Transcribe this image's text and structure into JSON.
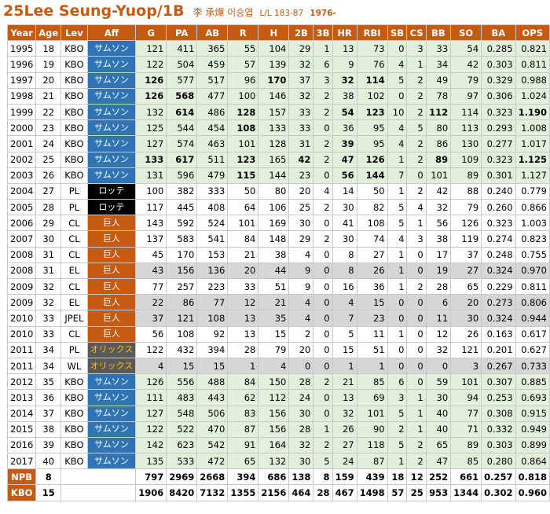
{
  "header": {
    "title": "25Lee Seung-Yuop/1B",
    "name_cjk": "李 承燁 이승엽",
    "bio": "L/L 183-87",
    "birth_year": "1976-"
  },
  "columns": [
    "Year",
    "Age",
    "Lev",
    "Aff",
    "G",
    "PA",
    "AB",
    "R",
    "H",
    "2B",
    "3B",
    "HR",
    "RBI",
    "SB",
    "CS",
    "BB",
    "SO",
    "BA",
    "OPS"
  ],
  "rows": [
    {
      "type": "kbo",
      "aff_style": "samsung",
      "cells": [
        "1995",
        "18",
        "KBO",
        "サムソン",
        "121",
        "411",
        "365",
        "55",
        "104",
        "29",
        "1",
        "13",
        "73",
        "0",
        "3",
        "33",
        "54",
        "0.285",
        "0.821"
      ],
      "bold": []
    },
    {
      "type": "kbo",
      "aff_style": "samsung",
      "cells": [
        "1996",
        "19",
        "KBO",
        "サムソン",
        "122",
        "504",
        "459",
        "57",
        "139",
        "32",
        "6",
        "9",
        "76",
        "4",
        "1",
        "34",
        "42",
        "0.303",
        "0.811"
      ],
      "bold": []
    },
    {
      "type": "kbo",
      "aff_style": "samsung",
      "cells": [
        "1997",
        "20",
        "KBO",
        "サムソン",
        "126",
        "577",
        "517",
        "96",
        "170",
        "37",
        "3",
        "32",
        "114",
        "5",
        "2",
        "49",
        "79",
        "0.329",
        "0.988"
      ],
      "bold": [
        4,
        8,
        11,
        12
      ]
    },
    {
      "type": "kbo",
      "aff_style": "samsung",
      "cells": [
        "1998",
        "21",
        "KBO",
        "サムソン",
        "126",
        "568",
        "477",
        "100",
        "146",
        "32",
        "2",
        "38",
        "102",
        "0",
        "2",
        "78",
        "97",
        "0.306",
        "1.024"
      ],
      "bold": [
        4,
        5
      ]
    },
    {
      "type": "kbo",
      "aff_style": "samsung",
      "cells": [
        "1999",
        "22",
        "KBO",
        "サムソン",
        "132",
        "614",
        "486",
        "128",
        "157",
        "33",
        "2",
        "54",
        "123",
        "10",
        "2",
        "112",
        "114",
        "0.323",
        "1.190"
      ],
      "bold": [
        5,
        7,
        11,
        12,
        15,
        18
      ]
    },
    {
      "type": "kbo",
      "aff_style": "samsung",
      "cells": [
        "2000",
        "23",
        "KBO",
        "サムソン",
        "125",
        "544",
        "454",
        "108",
        "133",
        "33",
        "0",
        "36",
        "95",
        "4",
        "5",
        "80",
        "113",
        "0.293",
        "1.008"
      ],
      "bold": [
        7
      ]
    },
    {
      "type": "kbo",
      "aff_style": "samsung",
      "cells": [
        "2001",
        "24",
        "KBO",
        "サムソン",
        "127",
        "574",
        "463",
        "101",
        "128",
        "31",
        "2",
        "39",
        "95",
        "4",
        "2",
        "86",
        "130",
        "0.277",
        "1.017"
      ],
      "bold": [
        11
      ]
    },
    {
      "type": "kbo",
      "aff_style": "samsung",
      "cells": [
        "2002",
        "25",
        "KBO",
        "サムソン",
        "133",
        "617",
        "511",
        "123",
        "165",
        "42",
        "2",
        "47",
        "126",
        "1",
        "2",
        "89",
        "109",
        "0.323",
        "1.125"
      ],
      "bold": [
        4,
        5,
        7,
        9,
        11,
        12,
        15,
        18
      ]
    },
    {
      "type": "kbo",
      "aff_style": "samsung",
      "cells": [
        "2003",
        "26",
        "KBO",
        "サムソン",
        "131",
        "596",
        "479",
        "115",
        "144",
        "23",
        "0",
        "56",
        "144",
        "7",
        "0",
        "101",
        "89",
        "0.301",
        "1.127"
      ],
      "bold": [
        7,
        11,
        12
      ]
    },
    {
      "type": "npb",
      "aff_style": "lotte",
      "cells": [
        "2004",
        "27",
        "PL",
        "ロッテ",
        "100",
        "382",
        "333",
        "50",
        "80",
        "20",
        "4",
        "14",
        "50",
        "1",
        "2",
        "42",
        "88",
        "0.240",
        "0.779"
      ],
      "bold": []
    },
    {
      "type": "npb",
      "aff_style": "lotte",
      "cells": [
        "2005",
        "28",
        "PL",
        "ロッテ",
        "117",
        "445",
        "408",
        "64",
        "106",
        "25",
        "2",
        "30",
        "82",
        "5",
        "4",
        "32",
        "79",
        "0.260",
        "0.866"
      ],
      "bold": []
    },
    {
      "type": "npb",
      "aff_style": "giants",
      "cells": [
        "2006",
        "29",
        "CL",
        "巨人",
        "143",
        "592",
        "524",
        "101",
        "169",
        "30",
        "0",
        "41",
        "108",
        "5",
        "1",
        "56",
        "126",
        "0.323",
        "1.003"
      ],
      "bold": []
    },
    {
      "type": "npb",
      "aff_style": "giants",
      "cells": [
        "2007",
        "30",
        "CL",
        "巨人",
        "137",
        "583",
        "541",
        "84",
        "148",
        "29",
        "2",
        "30",
        "74",
        "4",
        "3",
        "38",
        "119",
        "0.274",
        "0.823"
      ],
      "bold": []
    },
    {
      "type": "npb",
      "aff_style": "giants",
      "cells": [
        "2008",
        "31",
        "CL",
        "巨人",
        "45",
        "170",
        "153",
        "21",
        "38",
        "4",
        "0",
        "8",
        "27",
        "1",
        "0",
        "17",
        "37",
        "0.248",
        "0.755"
      ],
      "bold": []
    },
    {
      "type": "farm",
      "aff_style": "giants",
      "cells": [
        "2008",
        "31",
        "EL",
        "巨人",
        "43",
        "156",
        "136",
        "20",
        "44",
        "9",
        "0",
        "8",
        "26",
        "1",
        "0",
        "19",
        "27",
        "0.324",
        "0.970"
      ],
      "bold": []
    },
    {
      "type": "npb",
      "aff_style": "giants",
      "cells": [
        "2009",
        "32",
        "CL",
        "巨人",
        "77",
        "257",
        "223",
        "33",
        "51",
        "9",
        "0",
        "16",
        "36",
        "1",
        "2",
        "28",
        "65",
        "0.229",
        "0.811"
      ],
      "bold": []
    },
    {
      "type": "farm",
      "aff_style": "giants",
      "cells": [
        "2009",
        "32",
        "EL",
        "巨人",
        "22",
        "86",
        "77",
        "12",
        "21",
        "4",
        "0",
        "4",
        "15",
        "0",
        "0",
        "6",
        "20",
        "0.273",
        "0.806"
      ],
      "bold": []
    },
    {
      "type": "farm",
      "aff_style": "giants",
      "cells": [
        "2010",
        "33",
        "JPEL",
        "巨人",
        "37",
        "121",
        "108",
        "13",
        "35",
        "4",
        "0",
        "7",
        "23",
        "0",
        "0",
        "11",
        "30",
        "0.324",
        "0.944"
      ],
      "bold": []
    },
    {
      "type": "npb",
      "aff_style": "giants",
      "cells": [
        "2010",
        "33",
        "CL",
        "巨人",
        "56",
        "108",
        "92",
        "13",
        "15",
        "2",
        "0",
        "5",
        "11",
        "1",
        "0",
        "12",
        "26",
        "0.163",
        "0.617"
      ],
      "bold": []
    },
    {
      "type": "npb",
      "aff_style": "orix",
      "cells": [
        "2011",
        "34",
        "PL",
        "オリックス",
        "122",
        "432",
        "394",
        "28",
        "79",
        "20",
        "0",
        "15",
        "51",
        "0",
        "0",
        "32",
        "121",
        "0.201",
        "0.627"
      ],
      "bold": []
    },
    {
      "type": "farm",
      "aff_style": "orix",
      "cells": [
        "2011",
        "34",
        "WL",
        "オリックス",
        "4",
        "15",
        "15",
        "1",
        "4",
        "0",
        "0",
        "1",
        "1",
        "0",
        "0",
        "0",
        "3",
        "0.267",
        "0.733"
      ],
      "bold": []
    },
    {
      "type": "kbo",
      "aff_style": "samsung",
      "cells": [
        "2012",
        "35",
        "KBO",
        "サムソン",
        "126",
        "556",
        "488",
        "84",
        "150",
        "28",
        "2",
        "21",
        "85",
        "6",
        "0",
        "59",
        "101",
        "0.307",
        "0.885"
      ],
      "bold": []
    },
    {
      "type": "kbo",
      "aff_style": "samsung",
      "cells": [
        "2013",
        "36",
        "KBO",
        "サムソン",
        "111",
        "483",
        "443",
        "62",
        "112",
        "24",
        "0",
        "13",
        "69",
        "3",
        "1",
        "30",
        "94",
        "0.253",
        "0.693"
      ],
      "bold": []
    },
    {
      "type": "kbo",
      "aff_style": "samsung",
      "cells": [
        "2014",
        "37",
        "KBO",
        "サムソン",
        "127",
        "548",
        "506",
        "83",
        "156",
        "30",
        "0",
        "32",
        "101",
        "5",
        "1",
        "40",
        "77",
        "0.308",
        "0.915"
      ],
      "bold": []
    },
    {
      "type": "kbo",
      "aff_style": "samsung",
      "cells": [
        "2015",
        "38",
        "KBO",
        "サムソン",
        "122",
        "522",
        "470",
        "87",
        "156",
        "28",
        "1",
        "26",
        "90",
        "2",
        "1",
        "40",
        "71",
        "0.332",
        "0.949"
      ],
      "bold": []
    },
    {
      "type": "kbo",
      "aff_style": "samsung",
      "cells": [
        "2016",
        "39",
        "KBO",
        "サムソン",
        "142",
        "623",
        "542",
        "91",
        "164",
        "32",
        "2",
        "27",
        "118",
        "5",
        "2",
        "65",
        "89",
        "0.303",
        "0.899"
      ],
      "bold": []
    },
    {
      "type": "kbo",
      "aff_style": "samsung",
      "cells": [
        "2017",
        "40",
        "KBO",
        "サムソン",
        "135",
        "533",
        "472",
        "65",
        "132",
        "30",
        "5",
        "24",
        "87",
        "1",
        "2",
        "47",
        "85",
        "0.280",
        "0.864"
      ],
      "bold": []
    }
  ],
  "totals": [
    {
      "label": "NPB",
      "count": "8",
      "cells": [
        "797",
        "2969",
        "2668",
        "394",
        "686",
        "138",
        "8",
        "159",
        "439",
        "18",
        "12",
        "252",
        "661",
        "0.257",
        "0.818"
      ]
    },
    {
      "label": "KBO",
      "count": "15",
      "cells": [
        "1906",
        "8420",
        "7132",
        "1355",
        "2156",
        "464",
        "28",
        "467",
        "1498",
        "57",
        "25",
        "953",
        "1344",
        "0.302",
        "0.960"
      ]
    }
  ]
}
